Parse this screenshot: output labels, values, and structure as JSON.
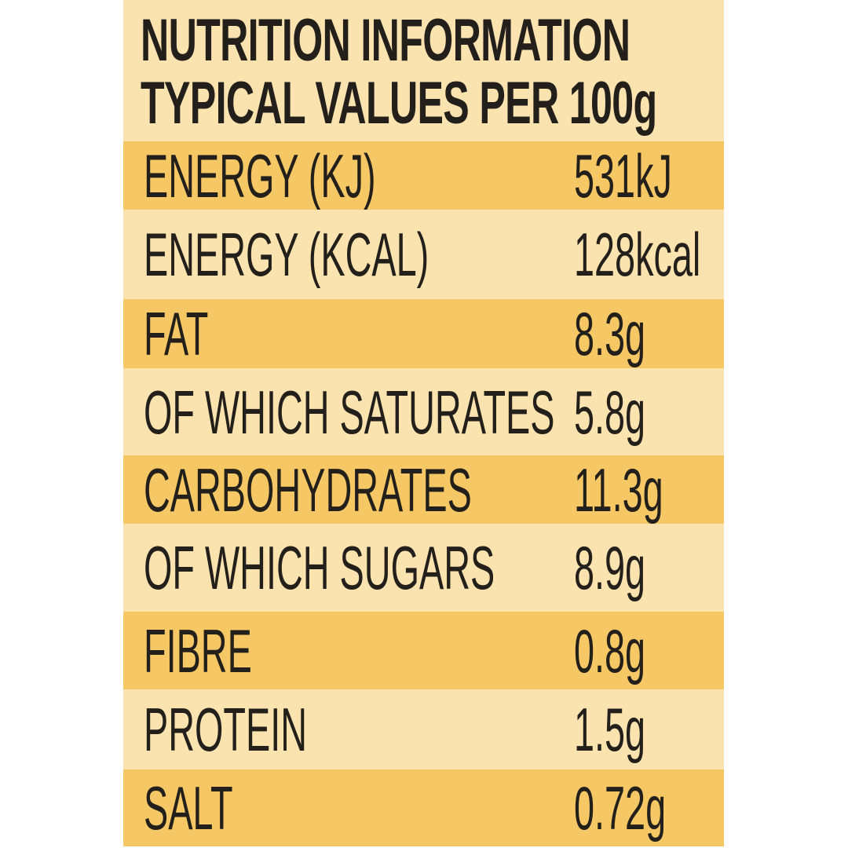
{
  "header": {
    "line1": "NUTRITION INFORMATION",
    "line2": "TYPICAL VALUES PER 100g"
  },
  "rows": [
    {
      "label": "ENERGY (KJ)",
      "value": "531kJ"
    },
    {
      "label": "ENERGY (KCAL)",
      "value": "128kcal"
    },
    {
      "label": "FAT",
      "value": "8.3g"
    },
    {
      "label": "OF WHICH SATURATES",
      "value": "5.8g"
    },
    {
      "label": "CARBOHYDRATES",
      "value": "11.3g"
    },
    {
      "label": "OF WHICH SUGARS",
      "value": "8.9g"
    },
    {
      "label": "FIBRE",
      "value": "0.8g"
    },
    {
      "label": "PROTEIN",
      "value": "1.5g"
    },
    {
      "label": "SALT",
      "value": "0.72g"
    }
  ],
  "colors": {
    "dark_row": "#f6c865",
    "light_row": "#fbe3b0",
    "text": "#231f1a"
  }
}
